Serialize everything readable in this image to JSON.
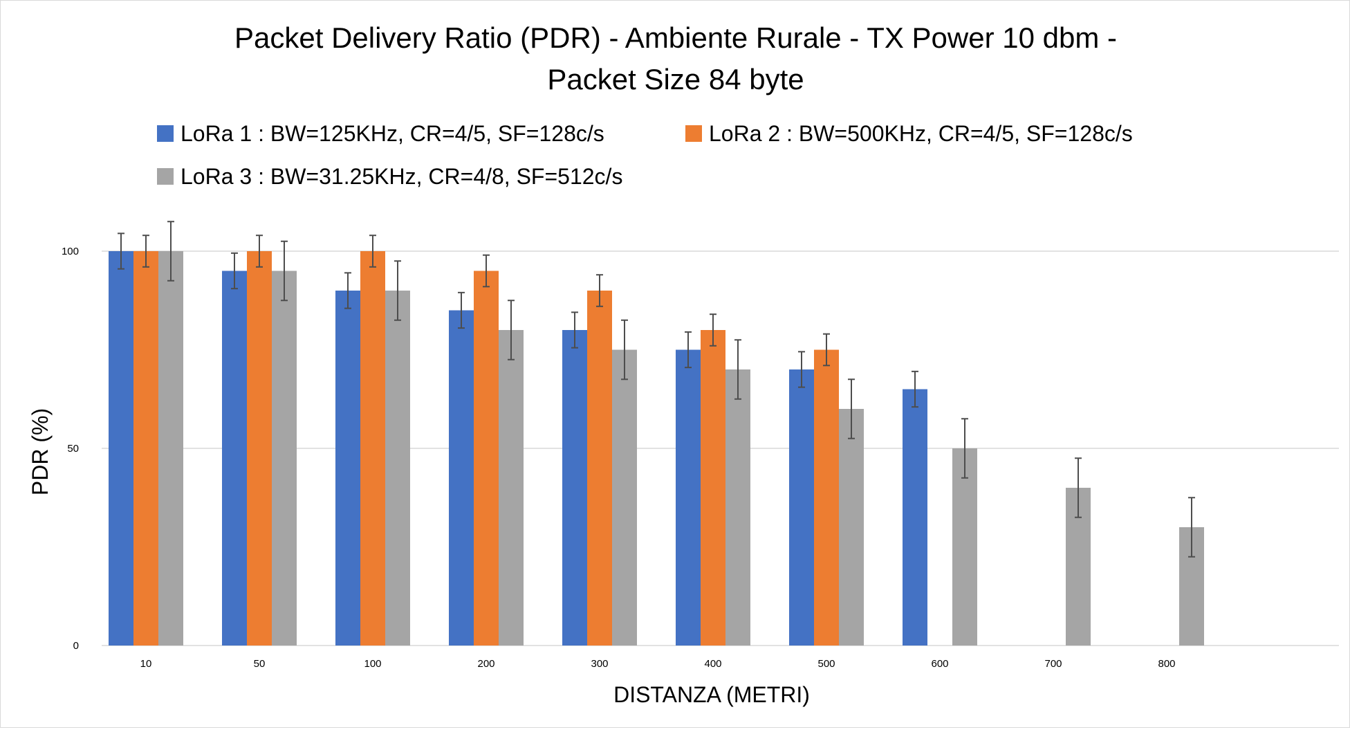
{
  "chart_data": {
    "type": "bar",
    "title_lines": [
      "Packet Delivery Ratio (PDR) - Ambiente Rurale - TX Power 10 dbm -",
      "Packet Size 84 byte"
    ],
    "xlabel": "DISTANZA (METRI)",
    "ylabel": "PDR (%)",
    "ylim": [
      0,
      100
    ],
    "yticks": [
      "0",
      "50",
      "100"
    ],
    "ytick_values": [
      0,
      50,
      100
    ],
    "grid": true,
    "legend_position": "top",
    "categories": [
      "10",
      "50",
      "100",
      "200",
      "300",
      "400",
      "500",
      "600",
      "700",
      "800"
    ],
    "series": [
      {
        "name": "LoRa 1 : BW=125KHz, CR=4/5, SF=128c/s",
        "color": "#4472C4",
        "values": [
          100,
          95,
          90,
          85,
          80,
          75,
          70,
          65,
          null,
          null
        ],
        "errors": [
          4.5,
          4.5,
          4.5,
          4.5,
          4.5,
          4.5,
          4.5,
          4.5,
          null,
          null
        ]
      },
      {
        "name": "LoRa 2 : BW=500KHz, CR=4/5, SF=128c/s",
        "color": "#ED7D31",
        "values": [
          100,
          100,
          100,
          95,
          90,
          80,
          75,
          null,
          null,
          null
        ],
        "errors": [
          4,
          4,
          4,
          4,
          4,
          4,
          4,
          null,
          null,
          null
        ]
      },
      {
        "name": "LoRa 3 : BW=31.25KHz, CR=4/8, SF=512c/s",
        "color": "#A5A5A5",
        "values": [
          100,
          95,
          90,
          80,
          75,
          70,
          60,
          50,
          40,
          30
        ],
        "errors": [
          7.5,
          7.5,
          7.5,
          7.5,
          7.5,
          7.5,
          7.5,
          7.5,
          7.5,
          7.5
        ]
      }
    ]
  }
}
